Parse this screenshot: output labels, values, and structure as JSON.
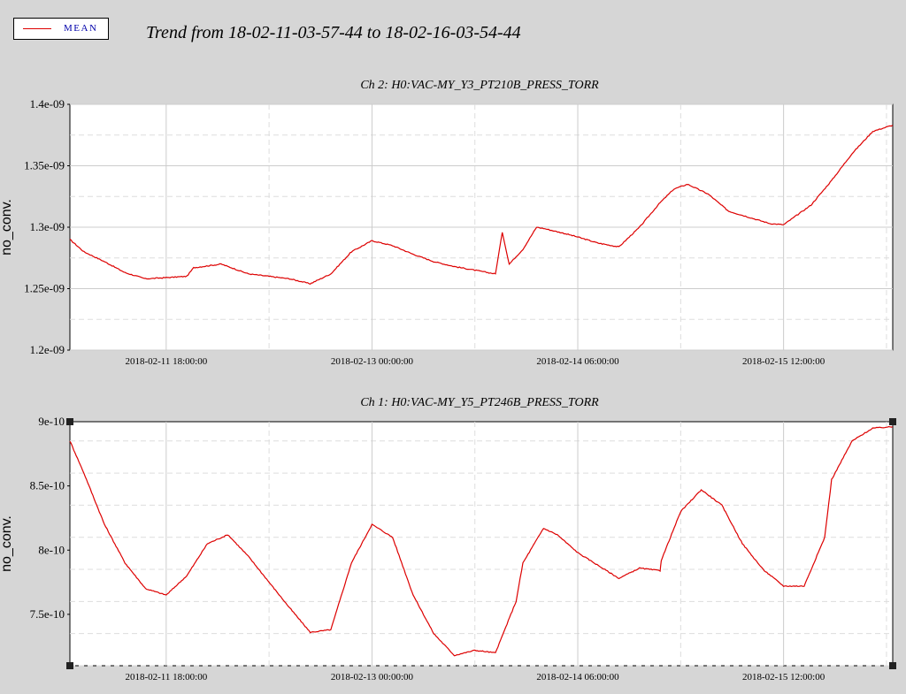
{
  "legend": {
    "label": "MEAN",
    "color": "#dd0000"
  },
  "header": {
    "title": "Trend from 18-02-11-03-57-44 to 18-02-16-03-54-44"
  },
  "chart_data": [
    {
      "type": "line",
      "title": "Ch 2: H0:VAC-MY_Y3_PT210B_PRESS_TORR",
      "ylabel": "no_conv.",
      "xlabel": "",
      "xlim": [
        "2018-02-11 03:57:44",
        "2018-02-16 03:54:44"
      ],
      "ylim": [
        1.2e-09,
        1.4e-09
      ],
      "yticks": [
        1.2e-09,
        1.25e-09,
        1.3e-09,
        1.35e-09,
        1.4e-09
      ],
      "ytick_labels": [
        "1.2e-09",
        "1.25e-09",
        "1.3e-09",
        "1.35e-09",
        "1.4e-09"
      ],
      "xticks": [
        "2018-02-11 18:00:00",
        "2018-02-13 00:00:00",
        "2018-02-14 06:00:00",
        "2018-02-15 12:00:00"
      ],
      "grid": true,
      "series": [
        {
          "name": "MEAN",
          "color": "#dd0000",
          "x": [
            "2018-02-11 03:58",
            "2018-02-11 06:00",
            "2018-02-11 09:00",
            "2018-02-11 12:00",
            "2018-02-11 15:00",
            "2018-02-11 18:00",
            "2018-02-11 21:00",
            "2018-02-11 22:00",
            "2018-02-12 02:00",
            "2018-02-12 06:00",
            "2018-02-12 09:00",
            "2018-02-12 12:00",
            "2018-02-12 15:00",
            "2018-02-12 18:00",
            "2018-02-12 21:00",
            "2018-02-13 00:00",
            "2018-02-13 03:00",
            "2018-02-13 06:00",
            "2018-02-13 09:00",
            "2018-02-13 12:00",
            "2018-02-13 15:00",
            "2018-02-13 18:00",
            "2018-02-13 19:00",
            "2018-02-13 20:00",
            "2018-02-13 21:00",
            "2018-02-13 22:00",
            "2018-02-14 00:00",
            "2018-02-14 01:00",
            "2018-02-14 04:00",
            "2018-02-14 06:00",
            "2018-02-14 09:00",
            "2018-02-14 12:00",
            "2018-02-14 15:00",
            "2018-02-14 18:00",
            "2018-02-14 20:00",
            "2018-02-14 22:00",
            "2018-02-15 01:00",
            "2018-02-15 04:00",
            "2018-02-15 07:00",
            "2018-02-15 10:00",
            "2018-02-15 12:00",
            "2018-02-15 16:00",
            "2018-02-15 19:00",
            "2018-02-15 22:00",
            "2018-02-16 01:00",
            "2018-02-16 03:54"
          ],
          "y": [
            1.29e-09,
            1.28e-09,
            1.272e-09,
            1.263e-09,
            1.258e-09,
            1.259e-09,
            1.26e-09,
            1.267e-09,
            1.27e-09,
            1.262e-09,
            1.26e-09,
            1.258e-09,
            1.254e-09,
            1.262e-09,
            1.28e-09,
            1.289e-09,
            1.285e-09,
            1.278e-09,
            1.272e-09,
            1.268e-09,
            1.265e-09,
            1.262e-09,
            1.296e-09,
            1.27e-09,
            1.276e-09,
            1.282e-09,
            1.3e-09,
            1.299e-09,
            1.295e-09,
            1.292e-09,
            1.287e-09,
            1.284e-09,
            1.3e-09,
            1.32e-09,
            1.331e-09,
            1.335e-09,
            1.327e-09,
            1.313e-09,
            1.308e-09,
            1.303e-09,
            1.302e-09,
            1.318e-09,
            1.338e-09,
            1.36e-09,
            1.378e-09,
            1.383e-09
          ]
        }
      ]
    },
    {
      "type": "line",
      "title": "Ch 1: H0:VAC-MY_Y5_PT246B_PRESS_TORR",
      "ylabel": "no_conv.",
      "xlabel": "",
      "xlim": [
        "2018-02-11 03:57:44",
        "2018-02-16 03:54:44"
      ],
      "ylim": [
        7.1e-10,
        9e-10
      ],
      "yticks": [
        7.5e-10,
        8e-10,
        8.5e-10,
        9e-10
      ],
      "ytick_labels": [
        "7.5e-10",
        "8e-10",
        "8.5e-10",
        "9e-10"
      ],
      "xticks": [
        "2018-02-11 18:00:00",
        "2018-02-13 00:00:00",
        "2018-02-14 06:00:00",
        "2018-02-15 12:00:00"
      ],
      "grid": true,
      "series": [
        {
          "name": "MEAN",
          "color": "#dd0000",
          "x": [
            "2018-02-11 03:58",
            "2018-02-11 06:00",
            "2018-02-11 09:00",
            "2018-02-11 12:00",
            "2018-02-11 15:00",
            "2018-02-11 18:00",
            "2018-02-11 21:00",
            "2018-02-12 00:00",
            "2018-02-12 03:00",
            "2018-02-12 06:00",
            "2018-02-12 09:00",
            "2018-02-12 12:00",
            "2018-02-12 15:00",
            "2018-02-12 18:00",
            "2018-02-12 21:00",
            "2018-02-13 00:00",
            "2018-02-13 03:00",
            "2018-02-13 06:00",
            "2018-02-13 09:00",
            "2018-02-13 12:00",
            "2018-02-13 15:00",
            "2018-02-13 18:00",
            "2018-02-13 21:00",
            "2018-02-13 22:00",
            "2018-02-14 01:00",
            "2018-02-14 03:00",
            "2018-02-14 06:00",
            "2018-02-14 09:00",
            "2018-02-14 12:00",
            "2018-02-14 15:00",
            "2018-02-14 18:00",
            "2018-02-14 18:10",
            "2018-02-14 21:00",
            "2018-02-15 00:00",
            "2018-02-15 03:00",
            "2018-02-15 06:00",
            "2018-02-15 09:00",
            "2018-02-15 12:00",
            "2018-02-15 15:00",
            "2018-02-15 18:00",
            "2018-02-15 19:00",
            "2018-02-15 22:00",
            "2018-02-16 01:00",
            "2018-02-16 03:54"
          ],
          "y": [
            8.85e-10,
            8.6e-10,
            8.2e-10,
            7.9e-10,
            7.7e-10,
            7.65e-10,
            7.8e-10,
            8.05e-10,
            8.12e-10,
            7.95e-10,
            7.75e-10,
            7.55e-10,
            7.36e-10,
            7.38e-10,
            7.9e-10,
            8.2e-10,
            8.1e-10,
            7.65e-10,
            7.35e-10,
            7.18e-10,
            7.22e-10,
            7.2e-10,
            7.6e-10,
            7.9e-10,
            8.17e-10,
            8.12e-10,
            7.98e-10,
            7.88e-10,
            7.78e-10,
            7.86e-10,
            7.84e-10,
            7.92e-10,
            8.3e-10,
            8.47e-10,
            8.35e-10,
            8.05e-10,
            7.85e-10,
            7.72e-10,
            7.72e-10,
            8.1e-10,
            8.55e-10,
            8.85e-10,
            8.95e-10,
            8.96e-10
          ]
        }
      ]
    }
  ]
}
